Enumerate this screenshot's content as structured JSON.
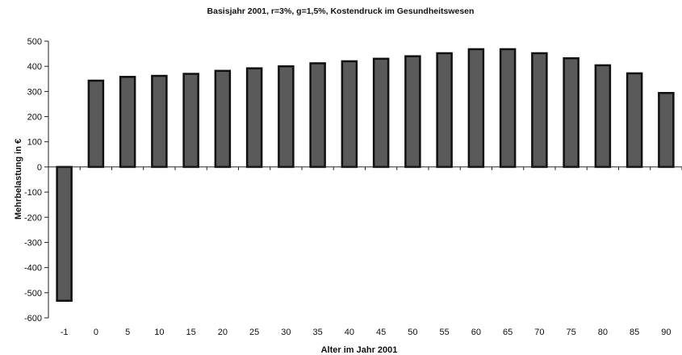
{
  "chart_data": {
    "type": "bar",
    "title": "Basisjahr 2001, r=3%, g=1,5%, Kostendruck im Gesundheitswesen",
    "xlabel": "Alter im Jahr 2001",
    "ylabel": "Mehrbelastung in €",
    "ylim": [
      -600,
      500
    ],
    "yticks": [
      500,
      400,
      300,
      200,
      100,
      0,
      -100,
      -200,
      -300,
      -400,
      -500,
      -600
    ],
    "grid": false,
    "categories": [
      "-1",
      "0",
      "5",
      "10",
      "15",
      "20",
      "25",
      "30",
      "35",
      "40",
      "45",
      "50",
      "55",
      "60",
      "65",
      "70",
      "75",
      "80",
      "85",
      "90"
    ],
    "values": [
      -532,
      343,
      358,
      362,
      370,
      382,
      392,
      400,
      412,
      420,
      430,
      440,
      452,
      468,
      468,
      452,
      432,
      404,
      372,
      294
    ],
    "bar_color": "#5a5a5a",
    "edge_color": "#111111"
  }
}
